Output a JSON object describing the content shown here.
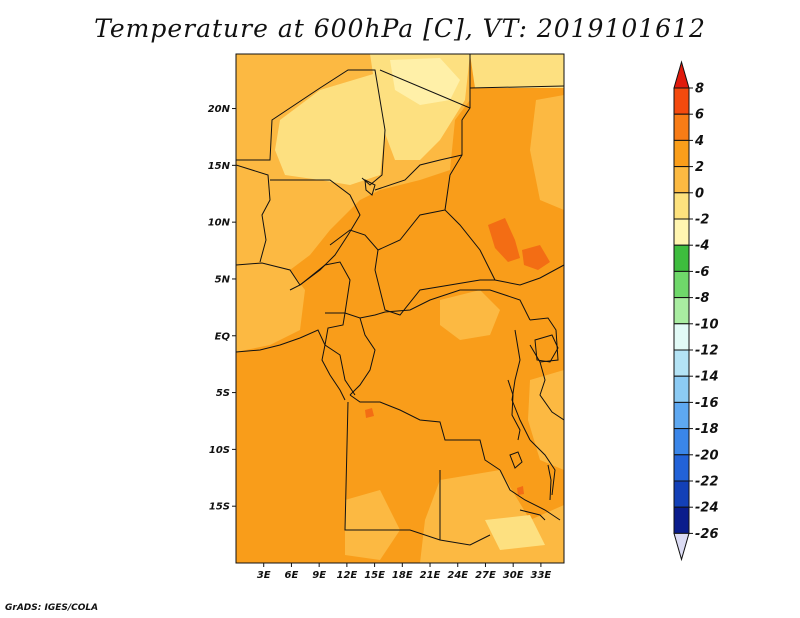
{
  "title": "Temperature at 600hPa [C], VT: 2019101612",
  "credit": "GrADS: IGES/COLA",
  "map": {
    "lat_ticks": [
      {
        "lat": 20,
        "label": "20N"
      },
      {
        "lat": 15,
        "label": "15N"
      },
      {
        "lat": 10,
        "label": "10N"
      },
      {
        "lat": 5,
        "label": "5N"
      },
      {
        "lat": 0,
        "label": "EQ"
      },
      {
        "lat": -5,
        "label": "5S"
      },
      {
        "lat": -10,
        "label": "10S"
      },
      {
        "lat": -15,
        "label": "15S"
      }
    ],
    "lon_ticks": [
      {
        "lon": 3,
        "label": "3E"
      },
      {
        "lon": 6,
        "label": "6E"
      },
      {
        "lon": 9,
        "label": "9E"
      },
      {
        "lon": 12,
        "label": "12E"
      },
      {
        "lon": 15,
        "label": "15E"
      },
      {
        "lon": 18,
        "label": "18E"
      },
      {
        "lon": 21,
        "label": "21E"
      },
      {
        "lon": 24,
        "label": "24E"
      },
      {
        "lon": 27,
        "label": "27E"
      },
      {
        "lon": 30,
        "label": "30E"
      },
      {
        "lon": 33,
        "label": "33E"
      }
    ],
    "colors": {
      "below_minus2": "#fff0a8",
      "minus2_to_0": "#fde080",
      "0_to_2": "#fcb942",
      "2_to_4": "#f99d1a",
      "4_to_6": "#f36d14",
      "6_to_8": "#ee4610"
    }
  },
  "colorbar": {
    "labels": [
      "8",
      "6",
      "4",
      "2",
      "0",
      "-2",
      "-4",
      "-6",
      "-8",
      "-10",
      "-12",
      "-14",
      "-16",
      "-18",
      "-20",
      "-22",
      "-24",
      "-26"
    ],
    "colors": [
      "#e8200c",
      "#f44a0e",
      "#f87c16",
      "#fa9e1a",
      "#fcba42",
      "#fde27e",
      "#fff5b0",
      "#3ebd3e",
      "#6fd86a",
      "#a9eda1",
      "#e2faf6",
      "#b4e3f5",
      "#8ccbf4",
      "#5ea8f1",
      "#3a86e9",
      "#2262d8",
      "#1340b7",
      "#0a1c8c",
      "#0a0a5c"
    ],
    "over_color": "#e01a0c",
    "under_color": "#dcdcf4"
  }
}
